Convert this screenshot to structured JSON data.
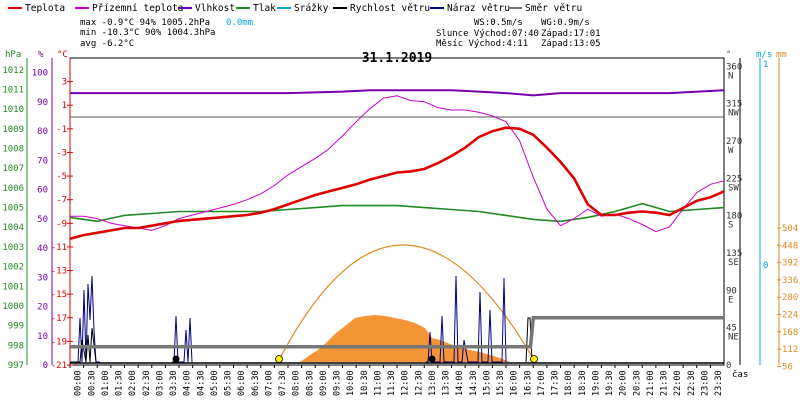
{
  "chart_data": {
    "type": "line",
    "title": "31.1.2019",
    "legend": [
      {
        "name": "Teplota",
        "color": "#dd0000"
      },
      {
        "name": "Přízemní teplota",
        "color": "#cc00cc"
      },
      {
        "name": "Vlhkost",
        "color": "#7700aa"
      },
      {
        "name": "Tlak",
        "color": "#228822"
      },
      {
        "name": "Srážky",
        "color": "#00aadd"
      },
      {
        "name": "Rychlost větru",
        "color": "#000000"
      },
      {
        "name": "Náraz větru",
        "color": "#000088"
      },
      {
        "name": "Směr větru",
        "color": "#777777"
      }
    ],
    "stats": {
      "max": "max -0.9°C  94%  1005.2hPa",
      "min": "min -10.3°C 90%  1004.3hPa",
      "avg": "avg -6.2°C",
      "rain": "0.0mm",
      "ws": "WS:0.5m/s",
      "wg": "WG:0.9m/s",
      "sun_rise": "Slunce Východ:07:40",
      "sun_set": "Západ:17:01",
      "moon_rise": "Měsíc  Východ:4:11",
      "moon_set": "Západ:13:05"
    },
    "axis_units": {
      "hpa": "hPa",
      "pct": "%",
      "temp": "°C",
      "dir": "°",
      "ms": "m/s",
      "mm": "mm",
      "x": "čas"
    },
    "left_axes": {
      "pressure_ticks": [
        "1012",
        "1011",
        "1010",
        "1009",
        "1008",
        "1007",
        "1006",
        "1005",
        "1004",
        "1003",
        "1002",
        "1001",
        "1000",
        "999",
        "998",
        "997"
      ],
      "humidity_ticks": [
        "100",
        "90",
        "80",
        "70",
        "60",
        "50",
        "40",
        "30",
        "20",
        "10",
        "0"
      ],
      "temp_ticks": [
        "3",
        "1",
        "-1",
        "-3",
        "-5",
        "-7",
        "-9",
        "-11",
        "-13",
        "-15",
        "-17",
        "-19",
        "-21"
      ],
      "temp_range": [
        -21,
        5
      ],
      "humidity_range": [
        0,
        105
      ],
      "pressure_range": [
        997,
        1012.6
      ]
    },
    "right_axes": {
      "dir_ticks": [
        "360",
        "315",
        "270",
        "225",
        "180",
        "135",
        "90",
        "45",
        "0"
      ],
      "dir_labels": [
        "N",
        "NW",
        "W",
        "SW",
        "S",
        "SE",
        "E",
        "NE"
      ],
      "ms_ticks": [
        "1",
        "0"
      ],
      "mm_ticks": [
        "504",
        "448",
        "392",
        "336",
        "280",
        "224",
        "168",
        "112",
        "56"
      ],
      "dir_range": [
        0,
        370
      ]
    },
    "x_ticks": [
      "00:00",
      "00:30",
      "01:00",
      "01:30",
      "02:00",
      "02:30",
      "03:00",
      "03:30",
      "04:00",
      "04:30",
      "05:00",
      "05:30",
      "06:00",
      "06:30",
      "07:00",
      "07:30",
      "08:00",
      "08:30",
      "09:00",
      "09:30",
      "10:00",
      "10:30",
      "11:00",
      "11:30",
      "12:00",
      "12:30",
      "13:00",
      "13:30",
      "14:00",
      "14:30",
      "15:00",
      "15:30",
      "16:00",
      "16:30",
      "17:00",
      "17:30",
      "18:00",
      "18:30",
      "19:00",
      "19:30",
      "20:00",
      "20:30",
      "21:00",
      "21:30",
      "22:00",
      "22:30",
      "23:00",
      "23:30"
    ],
    "series": [
      {
        "name": "Teplota",
        "unit": "°C",
        "x": [
          0,
          0.5,
          1,
          1.5,
          2,
          2.5,
          3,
          3.5,
          4,
          4.5,
          5,
          5.5,
          6,
          6.5,
          7,
          7.5,
          8,
          8.5,
          9,
          9.5,
          10,
          10.5,
          11,
          11.5,
          12,
          12.5,
          13,
          13.5,
          14,
          14.5,
          15,
          15.5,
          16,
          16.5,
          17,
          17.5,
          18,
          18.5,
          19,
          19.5,
          20,
          20.5,
          21,
          21.5,
          22,
          22.5,
          23,
          23.5,
          24
        ],
        "y": [
          -10.3,
          -10,
          -9.8,
          -9.6,
          -9.4,
          -9.4,
          -9.2,
          -9,
          -8.8,
          -8.7,
          -8.6,
          -8.5,
          -8.4,
          -8.3,
          -8.1,
          -7.8,
          -7.4,
          -7,
          -6.6,
          -6.3,
          -6,
          -5.7,
          -5.3,
          -5,
          -4.7,
          -4.6,
          -4.4,
          -3.9,
          -3.3,
          -2.6,
          -1.7,
          -1.2,
          -0.9,
          -1,
          -1.5,
          -2.6,
          -3.8,
          -5.2,
          -7.4,
          -8.3,
          -8.3,
          -8.1,
          -8,
          -8.1,
          -8.3,
          -7.7,
          -7.1,
          -6.8,
          -6.3
        ]
      },
      {
        "name": "Přízemní teplota",
        "unit": "°C",
        "x": [
          0,
          0.5,
          1,
          1.5,
          2,
          2.5,
          3,
          3.5,
          4,
          4.5,
          5,
          5.5,
          6,
          6.5,
          7,
          7.5,
          8,
          8.5,
          9,
          9.5,
          10,
          10.5,
          11,
          11.5,
          12,
          12.5,
          13,
          13.5,
          14,
          14.5,
          15,
          15.5,
          16,
          16.5,
          17,
          17.5,
          18,
          18.5,
          19,
          19.5,
          20,
          20.5,
          21,
          21.5,
          22,
          22.5,
          23,
          23.5,
          24
        ],
        "y": [
          -8.4,
          -8.4,
          -8.6,
          -9,
          -9.2,
          -9.4,
          -9.6,
          -9.2,
          -8.6,
          -8.3,
          -8,
          -7.7,
          -7.4,
          -7,
          -6.5,
          -5.8,
          -4.9,
          -4.2,
          -3.5,
          -2.7,
          -1.6,
          -0.4,
          0.7,
          1.6,
          1.8,
          1.4,
          1.3,
          0.8,
          0.6,
          0.6,
          0.4,
          0.1,
          -0.4,
          -2,
          -5.1,
          -7.8,
          -9.2,
          -8.6,
          -7.8,
          -8.4,
          -8.2,
          -8.6,
          -9.1,
          -9.7,
          -9.3,
          -7.8,
          -6.4,
          -5.7,
          -5.4
        ]
      },
      {
        "name": "Vlhkost",
        "unit": "%",
        "x": [
          0,
          2,
          4,
          6,
          8,
          10,
          11,
          12,
          13,
          14,
          15,
          16,
          17,
          18,
          20,
          22,
          24
        ],
        "y": [
          93,
          93,
          93,
          93,
          93,
          93.5,
          94,
          94,
          94,
          94,
          93.5,
          93,
          92.2,
          93,
          93,
          93,
          94
        ]
      },
      {
        "name": "Tlak",
        "unit": "hPa",
        "x": [
          0,
          1,
          2,
          3,
          4,
          5,
          6,
          7,
          8,
          9,
          10,
          11,
          12,
          13,
          14,
          15,
          16,
          17,
          18,
          19,
          20,
          21,
          22,
          23,
          24
        ],
        "y": [
          1004.5,
          1004.3,
          1004.6,
          1004.7,
          1004.8,
          1004.8,
          1004.8,
          1004.8,
          1004.9,
          1005,
          1005.1,
          1005.1,
          1005.1,
          1005.0,
          1004.9,
          1004.8,
          1004.6,
          1004.4,
          1004.3,
          1004.5,
          1004.8,
          1005.2,
          1004.8,
          1004.9,
          1005.0
        ]
      },
      {
        "name": "Směr větru",
        "unit": "°",
        "x": [
          0,
          16.9,
          17,
          24
        ],
        "y": [
          22,
          22,
          57,
          57
        ]
      },
      {
        "name": "Rychlost větru",
        "unit": "m/s",
        "x": [
          0,
          24
        ],
        "y": [
          0,
          0
        ]
      }
    ]
  }
}
